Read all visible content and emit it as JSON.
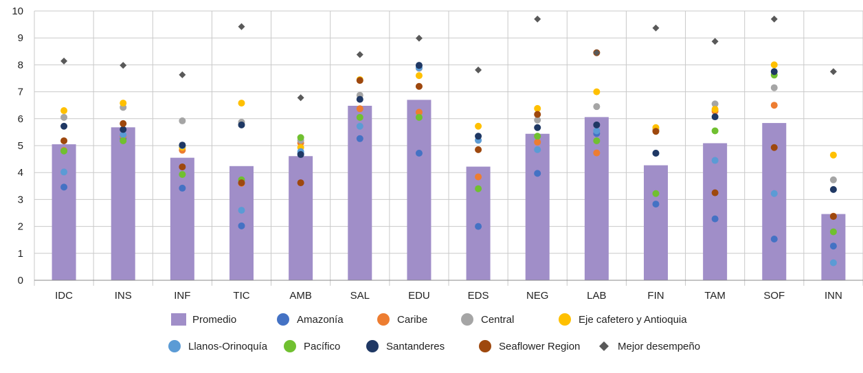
{
  "chart_data": {
    "type": "bar",
    "categories": [
      "IDC",
      "INS",
      "INF",
      "TIC",
      "AMB",
      "SAL",
      "EDU",
      "EDS",
      "NEG",
      "LAB",
      "FIN",
      "TAM",
      "SOF",
      "INN"
    ],
    "ylim": [
      0,
      10
    ],
    "yticks": [
      "0",
      "1",
      "2",
      "3",
      "4",
      "5",
      "6",
      "7",
      "8",
      "9",
      "10"
    ],
    "grid": true,
    "legend_position": "bottom",
    "series": [
      {
        "name": "Promedio",
        "kind": "bar",
        "color": "#a08ec8",
        "values": [
          5.05,
          5.68,
          4.55,
          4.24,
          4.61,
          6.48,
          6.7,
          4.22,
          5.44,
          6.06,
          4.27,
          5.09,
          5.84,
          2.46
        ]
      },
      {
        "name": "Amazonía",
        "kind": "dot",
        "color": "#4472c4",
        "values": [
          3.46,
          5.25,
          3.42,
          2.02,
          4.72,
          5.26,
          4.72,
          2.0,
          3.97,
          5.45,
          2.83,
          2.28,
          1.53,
          1.27
        ]
      },
      {
        "name": "Caribe",
        "kind": "dot",
        "color": "#ed7d31",
        "values": [
          4.82,
          5.35,
          4.83,
          3.6,
          5.1,
          6.37,
          6.24,
          3.84,
          5.13,
          4.73,
          5.56,
          6.28,
          6.5,
          2.38
        ]
      },
      {
        "name": "Central",
        "kind": "dot",
        "color": "#a5a5a5",
        "values": [
          6.05,
          6.42,
          5.92,
          5.87,
          5.2,
          6.87,
          7.87,
          5.2,
          5.95,
          6.45,
          5.6,
          6.55,
          7.15,
          3.73
        ]
      },
      {
        "name": "Eje cafetero y Antioquia",
        "kind": "dot",
        "color": "#ffc000",
        "values": [
          6.3,
          6.58,
          4.94,
          6.58,
          4.93,
          7.45,
          7.6,
          5.72,
          6.38,
          7.0,
          5.67,
          6.35,
          8.0,
          4.65
        ]
      },
      {
        "name": "Llanos-Orinoquía",
        "kind": "dot",
        "color": "#5b9bd5",
        "values": [
          4.02,
          5.4,
          5.0,
          2.6,
          4.78,
          5.72,
          7.9,
          5.2,
          4.85,
          5.55,
          4.72,
          4.45,
          3.22,
          0.65
        ]
      },
      {
        "name": "Pacífico",
        "kind": "dot",
        "color": "#70c030",
        "values": [
          4.8,
          5.18,
          3.93,
          3.73,
          5.3,
          6.05,
          6.05,
          3.4,
          5.35,
          5.18,
          3.22,
          5.55,
          7.62,
          1.8
        ]
      },
      {
        "name": "Santanderes",
        "kind": "dot",
        "color": "#1f3864",
        "values": [
          5.72,
          5.6,
          5.02,
          5.77,
          4.67,
          6.72,
          7.98,
          5.35,
          5.67,
          5.77,
          4.72,
          6.07,
          7.75,
          3.37
        ]
      },
      {
        "name": "Seaflower Region",
        "kind": "dot",
        "color": "#9e480e",
        "values": [
          5.18,
          5.82,
          4.21,
          3.62,
          3.62,
          7.42,
          7.2,
          4.85,
          6.16,
          8.45,
          5.53,
          3.25,
          4.93,
          2.37
        ]
      },
      {
        "name": "Mejor desempeño",
        "kind": "diamond",
        "color": "#595959",
        "values": [
          8.14,
          7.98,
          7.63,
          9.42,
          6.78,
          8.38,
          8.99,
          7.81,
          9.7,
          8.45,
          9.37,
          8.87,
          9.7,
          7.75
        ]
      }
    ]
  }
}
